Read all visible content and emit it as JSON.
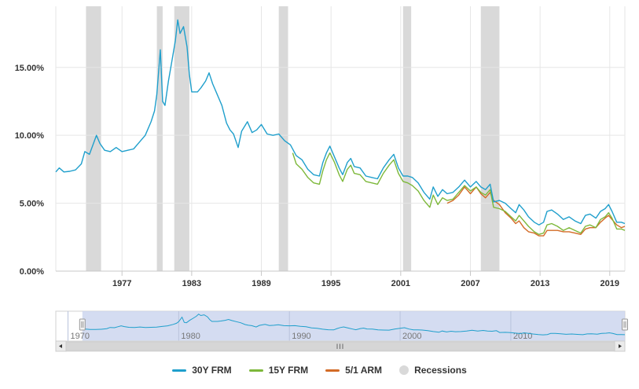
{
  "chart_data": {
    "type": "line",
    "title": "",
    "xlabel": "",
    "ylabel": "",
    "ylim": [
      0,
      19.5
    ],
    "xlim": [
      1971.3,
      2020.3
    ],
    "grid": true,
    "legend_placement": "bottom-center",
    "y_ticks": [
      {
        "value": 0,
        "label": "0.00%"
      },
      {
        "value": 5,
        "label": "5.00%"
      },
      {
        "value": 10,
        "label": "10.00%"
      },
      {
        "value": 15,
        "label": "15.00%"
      }
    ],
    "x_ticks": [
      {
        "value": 1977,
        "label": "1977"
      },
      {
        "value": 1983,
        "label": "1983"
      },
      {
        "value": 1989,
        "label": "1989"
      },
      {
        "value": 1995,
        "label": "1995"
      },
      {
        "value": 2001,
        "label": "2001"
      },
      {
        "value": 2007,
        "label": "2007"
      },
      {
        "value": 2013,
        "label": "2013"
      },
      {
        "value": 2019,
        "label": "2019"
      }
    ],
    "recessions": [
      {
        "start": 1973.9,
        "end": 1975.2
      },
      {
        "start": 1980.0,
        "end": 1980.5
      },
      {
        "start": 1981.5,
        "end": 1982.8
      },
      {
        "start": 1990.5,
        "end": 1991.3
      },
      {
        "start": 2001.2,
        "end": 2001.9
      },
      {
        "start": 2007.9,
        "end": 2009.5
      }
    ],
    "recession_color": "#d9d9d9",
    "series": [
      {
        "name": "30Y FRM",
        "color": "#1f9fcc",
        "points": [
          [
            1971.3,
            7.3
          ],
          [
            1971.6,
            7.6
          ],
          [
            1972.0,
            7.3
          ],
          [
            1972.5,
            7.35
          ],
          [
            1973.0,
            7.45
          ],
          [
            1973.5,
            7.9
          ],
          [
            1973.8,
            8.8
          ],
          [
            1974.2,
            8.6
          ],
          [
            1974.5,
            9.3
          ],
          [
            1974.8,
            10.0
          ],
          [
            1975.1,
            9.4
          ],
          [
            1975.5,
            8.9
          ],
          [
            1976.0,
            8.8
          ],
          [
            1976.5,
            9.1
          ],
          [
            1977.0,
            8.8
          ],
          [
            1977.5,
            8.9
          ],
          [
            1978.0,
            9.0
          ],
          [
            1978.5,
            9.5
          ],
          [
            1979.0,
            10.0
          ],
          [
            1979.5,
            11.0
          ],
          [
            1979.8,
            11.8
          ],
          [
            1980.0,
            13.0
          ],
          [
            1980.3,
            16.3
          ],
          [
            1980.5,
            12.5
          ],
          [
            1980.7,
            12.2
          ],
          [
            1981.0,
            14.0
          ],
          [
            1981.3,
            15.5
          ],
          [
            1981.6,
            17.0
          ],
          [
            1981.8,
            18.5
          ],
          [
            1982.0,
            17.5
          ],
          [
            1982.3,
            18.0
          ],
          [
            1982.6,
            16.5
          ],
          [
            1982.8,
            14.5
          ],
          [
            1983.0,
            13.2
          ],
          [
            1983.5,
            13.2
          ],
          [
            1983.8,
            13.5
          ],
          [
            1984.2,
            14.0
          ],
          [
            1984.5,
            14.6
          ],
          [
            1984.8,
            13.8
          ],
          [
            1985.2,
            13.0
          ],
          [
            1985.6,
            12.2
          ],
          [
            1986.0,
            10.9
          ],
          [
            1986.3,
            10.4
          ],
          [
            1986.6,
            10.1
          ],
          [
            1987.0,
            9.1
          ],
          [
            1987.3,
            10.3
          ],
          [
            1987.8,
            11.0
          ],
          [
            1988.2,
            10.2
          ],
          [
            1988.6,
            10.4
          ],
          [
            1989.0,
            10.8
          ],
          [
            1989.5,
            10.1
          ],
          [
            1990.0,
            10.0
          ],
          [
            1990.5,
            10.1
          ],
          [
            1991.0,
            9.6
          ],
          [
            1991.5,
            9.3
          ],
          [
            1992.0,
            8.5
          ],
          [
            1992.5,
            8.2
          ],
          [
            1993.0,
            7.5
          ],
          [
            1993.5,
            7.1
          ],
          [
            1994.0,
            7.0
          ],
          [
            1994.3,
            8.0
          ],
          [
            1994.6,
            8.7
          ],
          [
            1994.9,
            9.2
          ],
          [
            1995.3,
            8.4
          ],
          [
            1995.7,
            7.6
          ],
          [
            1996.0,
            7.1
          ],
          [
            1996.4,
            8.0
          ],
          [
            1996.7,
            8.3
          ],
          [
            1997.0,
            7.7
          ],
          [
            1997.5,
            7.6
          ],
          [
            1998.0,
            7.0
          ],
          [
            1998.5,
            6.9
          ],
          [
            1999.0,
            6.8
          ],
          [
            1999.5,
            7.6
          ],
          [
            2000.0,
            8.2
          ],
          [
            2000.4,
            8.6
          ],
          [
            2000.8,
            7.6
          ],
          [
            2001.2,
            7.0
          ],
          [
            2001.6,
            7.0
          ],
          [
            2002.0,
            6.9
          ],
          [
            2002.5,
            6.5
          ],
          [
            2003.0,
            5.8
          ],
          [
            2003.5,
            5.3
          ],
          [
            2003.8,
            6.2
          ],
          [
            2004.2,
            5.5
          ],
          [
            2004.6,
            6.0
          ],
          [
            2005.0,
            5.7
          ],
          [
            2005.5,
            5.8
          ],
          [
            2006.0,
            6.2
          ],
          [
            2006.5,
            6.7
          ],
          [
            2007.0,
            6.2
          ],
          [
            2007.5,
            6.6
          ],
          [
            2007.9,
            6.2
          ],
          [
            2008.3,
            6.0
          ],
          [
            2008.7,
            6.4
          ],
          [
            2009.0,
            5.1
          ],
          [
            2009.5,
            5.2
          ],
          [
            2010.0,
            5.0
          ],
          [
            2010.5,
            4.6
          ],
          [
            2010.9,
            4.3
          ],
          [
            2011.2,
            4.9
          ],
          [
            2011.6,
            4.5
          ],
          [
            2012.0,
            4.0
          ],
          [
            2012.5,
            3.6
          ],
          [
            2012.9,
            3.4
          ],
          [
            2013.3,
            3.6
          ],
          [
            2013.6,
            4.4
          ],
          [
            2014.0,
            4.5
          ],
          [
            2014.5,
            4.2
          ],
          [
            2015.0,
            3.8
          ],
          [
            2015.5,
            4.0
          ],
          [
            2016.0,
            3.7
          ],
          [
            2016.5,
            3.5
          ],
          [
            2016.9,
            4.1
          ],
          [
            2017.3,
            4.2
          ],
          [
            2017.8,
            3.9
          ],
          [
            2018.2,
            4.4
          ],
          [
            2018.6,
            4.6
          ],
          [
            2018.9,
            4.9
          ],
          [
            2019.2,
            4.4
          ],
          [
            2019.6,
            3.6
          ],
          [
            2020.0,
            3.6
          ],
          [
            2020.3,
            3.5
          ]
        ]
      },
      {
        "name": "15Y FRM",
        "color": "#7db83a",
        "points": [
          [
            1991.7,
            8.7
          ],
          [
            1992.0,
            7.9
          ],
          [
            1992.5,
            7.5
          ],
          [
            1993.0,
            6.9
          ],
          [
            1993.5,
            6.5
          ],
          [
            1994.0,
            6.4
          ],
          [
            1994.3,
            7.4
          ],
          [
            1994.6,
            8.2
          ],
          [
            1994.9,
            8.7
          ],
          [
            1995.3,
            8.0
          ],
          [
            1995.7,
            7.1
          ],
          [
            1996.0,
            6.6
          ],
          [
            1996.4,
            7.5
          ],
          [
            1996.7,
            7.8
          ],
          [
            1997.0,
            7.2
          ],
          [
            1997.5,
            7.1
          ],
          [
            1998.0,
            6.6
          ],
          [
            1998.5,
            6.5
          ],
          [
            1999.0,
            6.4
          ],
          [
            1999.5,
            7.2
          ],
          [
            2000.0,
            7.8
          ],
          [
            2000.4,
            8.2
          ],
          [
            2000.8,
            7.2
          ],
          [
            2001.2,
            6.6
          ],
          [
            2001.6,
            6.5
          ],
          [
            2002.0,
            6.3
          ],
          [
            2002.5,
            5.9
          ],
          [
            2003.0,
            5.2
          ],
          [
            2003.5,
            4.7
          ],
          [
            2003.8,
            5.6
          ],
          [
            2004.2,
            4.9
          ],
          [
            2004.6,
            5.4
          ],
          [
            2005.0,
            5.2
          ],
          [
            2005.5,
            5.3
          ],
          [
            2006.0,
            5.8
          ],
          [
            2006.5,
            6.3
          ],
          [
            2007.0,
            5.9
          ],
          [
            2007.5,
            6.2
          ],
          [
            2007.9,
            5.8
          ],
          [
            2008.3,
            5.6
          ],
          [
            2008.7,
            6.0
          ],
          [
            2009.0,
            4.7
          ],
          [
            2009.5,
            4.6
          ],
          [
            2010.0,
            4.4
          ],
          [
            2010.5,
            4.0
          ],
          [
            2010.9,
            3.7
          ],
          [
            2011.2,
            4.1
          ],
          [
            2011.6,
            3.7
          ],
          [
            2012.0,
            3.3
          ],
          [
            2012.5,
            2.9
          ],
          [
            2012.9,
            2.7
          ],
          [
            2013.3,
            2.8
          ],
          [
            2013.6,
            3.4
          ],
          [
            2014.0,
            3.5
          ],
          [
            2014.5,
            3.3
          ],
          [
            2015.0,
            3.0
          ],
          [
            2015.5,
            3.2
          ],
          [
            2016.0,
            3.0
          ],
          [
            2016.5,
            2.8
          ],
          [
            2016.9,
            3.3
          ],
          [
            2017.3,
            3.4
          ],
          [
            2017.8,
            3.2
          ],
          [
            2018.2,
            3.8
          ],
          [
            2018.6,
            4.0
          ],
          [
            2018.9,
            4.3
          ],
          [
            2019.2,
            3.9
          ],
          [
            2019.6,
            3.1
          ],
          [
            2020.0,
            3.1
          ],
          [
            2020.3,
            3.0
          ]
        ]
      },
      {
        "name": "5/1 ARM",
        "color": "#d36b26",
        "points": [
          [
            2005.0,
            5.0
          ],
          [
            2005.5,
            5.2
          ],
          [
            2006.0,
            5.6
          ],
          [
            2006.5,
            6.2
          ],
          [
            2007.0,
            5.7
          ],
          [
            2007.5,
            6.2
          ],
          [
            2007.9,
            5.7
          ],
          [
            2008.3,
            5.4
          ],
          [
            2008.7,
            5.8
          ],
          [
            2009.0,
            5.2
          ],
          [
            2009.5,
            4.9
          ],
          [
            2010.0,
            4.3
          ],
          [
            2010.5,
            3.9
          ],
          [
            2010.9,
            3.5
          ],
          [
            2011.2,
            3.7
          ],
          [
            2011.6,
            3.2
          ],
          [
            2012.0,
            2.9
          ],
          [
            2012.5,
            2.8
          ],
          [
            2012.9,
            2.6
          ],
          [
            2013.3,
            2.6
          ],
          [
            2013.6,
            3.0
          ],
          [
            2014.0,
            3.0
          ],
          [
            2014.5,
            3.0
          ],
          [
            2015.0,
            2.9
          ],
          [
            2015.5,
            2.9
          ],
          [
            2016.0,
            2.8
          ],
          [
            2016.5,
            2.7
          ],
          [
            2016.9,
            3.1
          ],
          [
            2017.3,
            3.2
          ],
          [
            2017.8,
            3.2
          ],
          [
            2018.2,
            3.6
          ],
          [
            2018.6,
            3.9
          ],
          [
            2018.9,
            4.1
          ],
          [
            2019.2,
            3.8
          ],
          [
            2019.6,
            3.4
          ],
          [
            2020.0,
            3.2
          ],
          [
            2020.3,
            3.3
          ]
        ]
      }
    ],
    "navigator": {
      "xlim": [
        1968.9,
        2020.3
      ],
      "ticks": [
        {
          "value": 1970,
          "label": "1970"
        },
        {
          "value": 1980,
          "label": "1980"
        },
        {
          "value": 1990,
          "label": "1990"
        },
        {
          "value": 2000,
          "label": "2000"
        },
        {
          "value": 2010,
          "label": "2010"
        }
      ],
      "selection": [
        1971.3,
        2020.3
      ],
      "selection_fill": "#ccd6ee",
      "line_color": "#1f9fcc",
      "grip_label": "III"
    },
    "legend": [
      {
        "name": "30Y FRM",
        "color": "#1f9fcc",
        "kind": "line"
      },
      {
        "name": "15Y FRM",
        "color": "#7db83a",
        "kind": "line"
      },
      {
        "name": "5/1 ARM",
        "color": "#d36b26",
        "kind": "line"
      },
      {
        "name": "Recessions",
        "color": "#d9d9d9",
        "kind": "dot"
      }
    ]
  }
}
